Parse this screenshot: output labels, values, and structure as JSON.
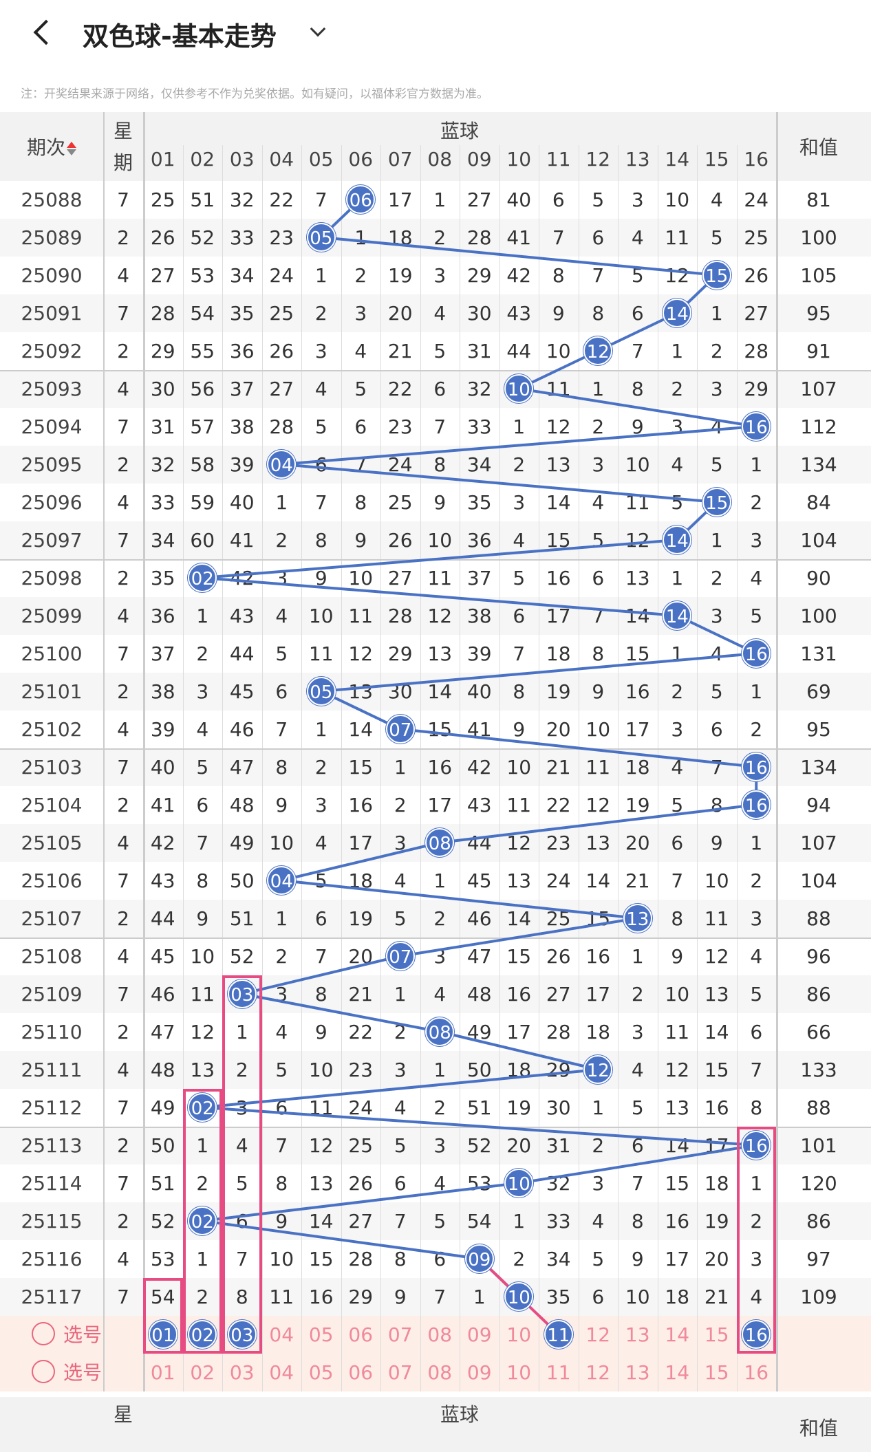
{
  "header": {
    "title": "双色球-基本走势"
  },
  "note": "注：开奖结果来源于网络，仅供参考不作为兑奖依据。如有疑问，以福体彩官方数据为准。",
  "table_header": {
    "period": "期次",
    "week_top": "星",
    "week_bottom": "期",
    "group": "蓝球",
    "sum": "和值",
    "columns": [
      "01",
      "02",
      "03",
      "04",
      "05",
      "06",
      "07",
      "08",
      "09",
      "10",
      "11",
      "12",
      "13",
      "14",
      "15",
      "16"
    ]
  },
  "rows": [
    {
      "period": "25088",
      "week": "7",
      "hit": 6,
      "sum": "81",
      "cells": [
        "25",
        "51",
        "32",
        "22",
        "7",
        "06",
        "17",
        "1",
        "27",
        "40",
        "6",
        "5",
        "3",
        "10",
        "4",
        "24"
      ]
    },
    {
      "period": "25089",
      "week": "2",
      "hit": 5,
      "sum": "100",
      "cells": [
        "26",
        "52",
        "33",
        "23",
        "05",
        "1",
        "18",
        "2",
        "28",
        "41",
        "7",
        "6",
        "4",
        "11",
        "5",
        "25"
      ]
    },
    {
      "period": "25090",
      "week": "4",
      "hit": 15,
      "sum": "105",
      "cells": [
        "27",
        "53",
        "34",
        "24",
        "1",
        "2",
        "19",
        "3",
        "29",
        "42",
        "8",
        "7",
        "5",
        "12",
        "15",
        "26"
      ]
    },
    {
      "period": "25091",
      "week": "7",
      "hit": 14,
      "sum": "95",
      "cells": [
        "28",
        "54",
        "35",
        "25",
        "2",
        "3",
        "20",
        "4",
        "30",
        "43",
        "9",
        "8",
        "6",
        "14",
        "1",
        "27"
      ]
    },
    {
      "period": "25092",
      "week": "2",
      "hit": 12,
      "sum": "91",
      "cells": [
        "29",
        "55",
        "36",
        "26",
        "3",
        "4",
        "21",
        "5",
        "31",
        "44",
        "10",
        "12",
        "7",
        "1",
        "2",
        "28"
      ]
    },
    {
      "period": "25093",
      "week": "4",
      "hit": 10,
      "sum": "107",
      "cells": [
        "30",
        "56",
        "37",
        "27",
        "4",
        "5",
        "22",
        "6",
        "32",
        "10",
        "11",
        "1",
        "8",
        "2",
        "3",
        "29"
      ]
    },
    {
      "period": "25094",
      "week": "7",
      "hit": 16,
      "sum": "112",
      "cells": [
        "31",
        "57",
        "38",
        "28",
        "5",
        "6",
        "23",
        "7",
        "33",
        "1",
        "12",
        "2",
        "9",
        "3",
        "4",
        "16"
      ]
    },
    {
      "period": "25095",
      "week": "2",
      "hit": 4,
      "sum": "134",
      "cells": [
        "32",
        "58",
        "39",
        "04",
        "6",
        "7",
        "24",
        "8",
        "34",
        "2",
        "13",
        "3",
        "10",
        "4",
        "5",
        "1"
      ]
    },
    {
      "period": "25096",
      "week": "4",
      "hit": 15,
      "sum": "84",
      "cells": [
        "33",
        "59",
        "40",
        "1",
        "7",
        "8",
        "25",
        "9",
        "35",
        "3",
        "14",
        "4",
        "11",
        "5",
        "15",
        "2"
      ]
    },
    {
      "period": "25097",
      "week": "7",
      "hit": 14,
      "sum": "104",
      "cells": [
        "34",
        "60",
        "41",
        "2",
        "8",
        "9",
        "26",
        "10",
        "36",
        "4",
        "15",
        "5",
        "12",
        "14",
        "1",
        "3"
      ]
    },
    {
      "period": "25098",
      "week": "2",
      "hit": 2,
      "sum": "90",
      "cells": [
        "35",
        "02",
        "42",
        "3",
        "9",
        "10",
        "27",
        "11",
        "37",
        "5",
        "16",
        "6",
        "13",
        "1",
        "2",
        "4"
      ]
    },
    {
      "period": "25099",
      "week": "4",
      "hit": 14,
      "sum": "100",
      "cells": [
        "36",
        "1",
        "43",
        "4",
        "10",
        "11",
        "28",
        "12",
        "38",
        "6",
        "17",
        "7",
        "14",
        "14",
        "3",
        "5"
      ]
    },
    {
      "period": "25100",
      "week": "7",
      "hit": 16,
      "sum": "131",
      "cells": [
        "37",
        "2",
        "44",
        "5",
        "11",
        "12",
        "29",
        "13",
        "39",
        "7",
        "18",
        "8",
        "15",
        "1",
        "4",
        "16"
      ]
    },
    {
      "period": "25101",
      "week": "2",
      "hit": 5,
      "sum": "69",
      "cells": [
        "38",
        "3",
        "45",
        "6",
        "05",
        "13",
        "30",
        "14",
        "40",
        "8",
        "19",
        "9",
        "16",
        "2",
        "5",
        "1"
      ]
    },
    {
      "period": "25102",
      "week": "4",
      "hit": 7,
      "sum": "95",
      "cells": [
        "39",
        "4",
        "46",
        "7",
        "1",
        "14",
        "07",
        "15",
        "41",
        "9",
        "20",
        "10",
        "17",
        "3",
        "6",
        "2"
      ]
    },
    {
      "period": "25103",
      "week": "7",
      "hit": 16,
      "sum": "134",
      "cells": [
        "40",
        "5",
        "47",
        "8",
        "2",
        "15",
        "1",
        "16",
        "42",
        "10",
        "21",
        "11",
        "18",
        "4",
        "7",
        "16"
      ]
    },
    {
      "period": "25104",
      "week": "2",
      "hit": 16,
      "sum": "94",
      "cells": [
        "41",
        "6",
        "48",
        "9",
        "3",
        "16",
        "2",
        "17",
        "43",
        "11",
        "22",
        "12",
        "19",
        "5",
        "8",
        "16"
      ]
    },
    {
      "period": "25105",
      "week": "4",
      "hit": 8,
      "sum": "107",
      "cells": [
        "42",
        "7",
        "49",
        "10",
        "4",
        "17",
        "3",
        "08",
        "44",
        "12",
        "23",
        "13",
        "20",
        "6",
        "9",
        "1"
      ]
    },
    {
      "period": "25106",
      "week": "7",
      "hit": 4,
      "sum": "104",
      "cells": [
        "43",
        "8",
        "50",
        "04",
        "5",
        "18",
        "4",
        "1",
        "45",
        "13",
        "24",
        "14",
        "21",
        "7",
        "10",
        "2"
      ]
    },
    {
      "period": "25107",
      "week": "2",
      "hit": 13,
      "sum": "88",
      "cells": [
        "44",
        "9",
        "51",
        "1",
        "6",
        "19",
        "5",
        "2",
        "46",
        "14",
        "25",
        "15",
        "13",
        "8",
        "11",
        "3"
      ]
    },
    {
      "period": "25108",
      "week": "4",
      "hit": 7,
      "sum": "96",
      "cells": [
        "45",
        "10",
        "52",
        "2",
        "7",
        "20",
        "07",
        "3",
        "47",
        "15",
        "26",
        "16",
        "1",
        "9",
        "12",
        "4"
      ]
    },
    {
      "period": "25109",
      "week": "7",
      "hit": 3,
      "sum": "86",
      "cells": [
        "46",
        "11",
        "03",
        "3",
        "8",
        "21",
        "1",
        "4",
        "48",
        "16",
        "27",
        "17",
        "2",
        "10",
        "13",
        "5"
      ]
    },
    {
      "period": "25110",
      "week": "2",
      "hit": 8,
      "sum": "66",
      "cells": [
        "47",
        "12",
        "1",
        "4",
        "9",
        "22",
        "2",
        "08",
        "49",
        "17",
        "28",
        "18",
        "3",
        "11",
        "14",
        "6"
      ]
    },
    {
      "period": "25111",
      "week": "4",
      "hit": 12,
      "sum": "133",
      "cells": [
        "48",
        "13",
        "2",
        "5",
        "10",
        "23",
        "3",
        "1",
        "50",
        "18",
        "29",
        "12",
        "4",
        "12",
        "15",
        "7"
      ]
    },
    {
      "period": "25112",
      "week": "7",
      "hit": 2,
      "sum": "88",
      "cells": [
        "49",
        "02",
        "3",
        "6",
        "11",
        "24",
        "4",
        "2",
        "51",
        "19",
        "30",
        "1",
        "5",
        "13",
        "16",
        "8"
      ]
    },
    {
      "period": "25113",
      "week": "2",
      "hit": 16,
      "sum": "101",
      "cells": [
        "50",
        "1",
        "4",
        "7",
        "12",
        "25",
        "5",
        "3",
        "52",
        "20",
        "31",
        "2",
        "6",
        "14",
        "17",
        "16"
      ]
    },
    {
      "period": "25114",
      "week": "7",
      "hit": 10,
      "sum": "120",
      "cells": [
        "51",
        "2",
        "5",
        "8",
        "13",
        "26",
        "6",
        "4",
        "53",
        "10",
        "32",
        "3",
        "7",
        "15",
        "18",
        "1"
      ]
    },
    {
      "period": "25115",
      "week": "2",
      "hit": 2,
      "sum": "86",
      "cells": [
        "52",
        "02",
        "6",
        "9",
        "14",
        "27",
        "7",
        "5",
        "54",
        "1",
        "33",
        "4",
        "8",
        "16",
        "19",
        "2"
      ]
    },
    {
      "period": "25116",
      "week": "4",
      "hit": 9,
      "sum": "97",
      "cells": [
        "53",
        "1",
        "7",
        "10",
        "15",
        "28",
        "8",
        "6",
        "09",
        "2",
        "34",
        "5",
        "9",
        "17",
        "20",
        "3"
      ]
    },
    {
      "period": "25117",
      "week": "7",
      "hit": 10,
      "sum": "109",
      "cells": [
        "54",
        "2",
        "8",
        "11",
        "16",
        "29",
        "9",
        "7",
        "1",
        "10",
        "35",
        "6",
        "10",
        "18",
        "21",
        "4"
      ]
    }
  ],
  "select": {
    "label": "选号",
    "row1_selected": [
      1,
      2,
      3,
      11,
      16
    ],
    "numbers": [
      "01",
      "02",
      "03",
      "04",
      "05",
      "06",
      "07",
      "08",
      "09",
      "10",
      "11",
      "12",
      "13",
      "14",
      "15",
      "16"
    ]
  },
  "colors": {
    "ball": "#4a72c4",
    "pink": "#e64b82",
    "select_bg": "#fdeee8"
  }
}
